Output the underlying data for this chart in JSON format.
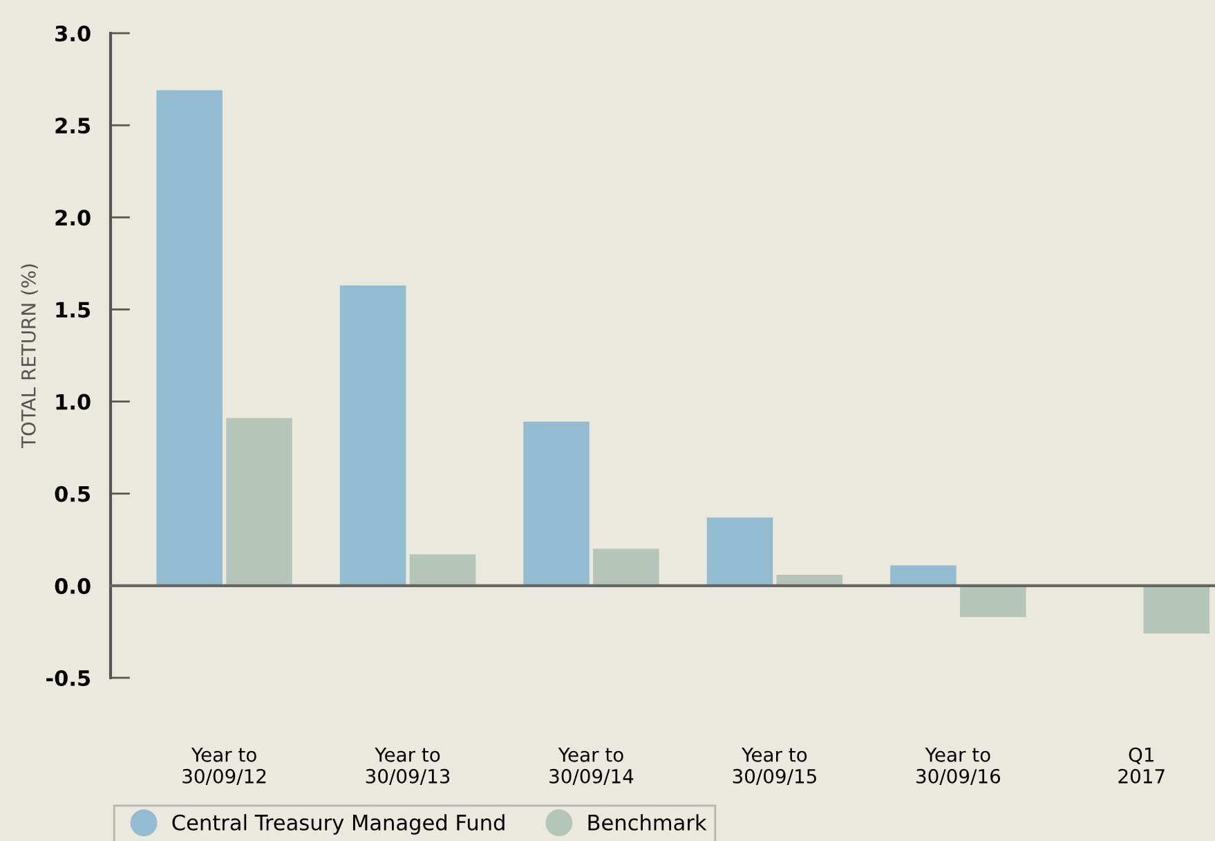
{
  "chart_data": {
    "type": "bar",
    "ylabel": "TOTAL RETURN (%)",
    "categories": [
      "Year to\n30/09/12",
      "Year to\n30/09/13",
      "Year to\n30/09/14",
      "Year to\n30/09/15",
      "Year to\n30/09/16",
      "Q1\n2017"
    ],
    "series": [
      {
        "name": "Central Treasury Managed Fund",
        "color": "#94bcd1",
        "values": [
          2.69,
          1.63,
          0.89,
          0.37,
          0.11,
          null
        ]
      },
      {
        "name": "Benchmark",
        "color": "#b5c5ba",
        "values": [
          0.91,
          0.17,
          0.2,
          0.06,
          -0.17,
          -0.26
        ]
      }
    ],
    "ylim": [
      -0.5,
      3.0
    ],
    "yticks": [
      {
        "value": -0.5,
        "label": "-0.5"
      },
      {
        "value": 0,
        "label": "0.0"
      },
      {
        "value": 0.5,
        "label": "0.5"
      },
      {
        "value": 1.0,
        "label": "1.0"
      },
      {
        "value": 1.5,
        "label": "1.5"
      },
      {
        "value": 2.0,
        "label": "2.0"
      },
      {
        "value": 2.5,
        "label": "2.5"
      },
      {
        "value": 3.0,
        "label": "3.0"
      }
    ],
    "legend": "bottom left"
  }
}
